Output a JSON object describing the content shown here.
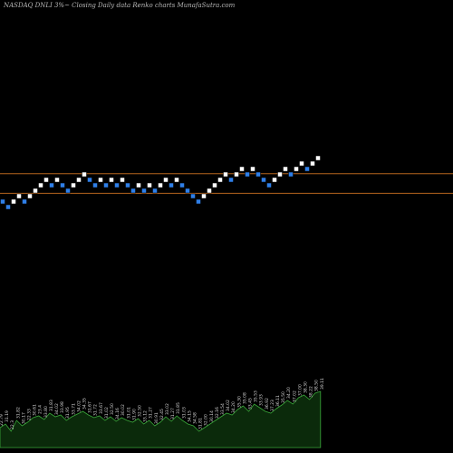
{
  "title": "NASDAQ DNLI 3%~  Closing Daily data  Renko  charts MunafaSutra.com",
  "colors": {
    "background": "#000000",
    "up_brick": "#ffffff",
    "down_brick": "#2f7fe8",
    "reference_line": "#b5651d",
    "volume_fill": "#0b2a0b",
    "volume_line": "#3aa83a",
    "label_text": "#d7d7d7"
  },
  "chart_data": {
    "type": "renko",
    "title": "NASDAQ DNLI 3%~  Closing Daily data  Renko  charts MunafaSutra.com",
    "brick_size_note": "3%",
    "bricks": [
      {
        "level": 1,
        "dir": "down"
      },
      {
        "level": 0,
        "dir": "down"
      },
      {
        "level": 1,
        "dir": "up"
      },
      {
        "level": 2,
        "dir": "up"
      },
      {
        "level": 1,
        "dir": "down"
      },
      {
        "level": 2,
        "dir": "up"
      },
      {
        "level": 3,
        "dir": "up"
      },
      {
        "level": 4,
        "dir": "up"
      },
      {
        "level": 5,
        "dir": "up"
      },
      {
        "level": 4,
        "dir": "down"
      },
      {
        "level": 5,
        "dir": "up"
      },
      {
        "level": 4,
        "dir": "down"
      },
      {
        "level": 3,
        "dir": "down"
      },
      {
        "level": 4,
        "dir": "up"
      },
      {
        "level": 5,
        "dir": "up"
      },
      {
        "level": 6,
        "dir": "up"
      },
      {
        "level": 5,
        "dir": "down"
      },
      {
        "level": 4,
        "dir": "down"
      },
      {
        "level": 5,
        "dir": "up"
      },
      {
        "level": 4,
        "dir": "down"
      },
      {
        "level": 5,
        "dir": "up"
      },
      {
        "level": 4,
        "dir": "down"
      },
      {
        "level": 5,
        "dir": "up"
      },
      {
        "level": 4,
        "dir": "down"
      },
      {
        "level": 3,
        "dir": "down"
      },
      {
        "level": 4,
        "dir": "up"
      },
      {
        "level": 3,
        "dir": "down"
      },
      {
        "level": 4,
        "dir": "up"
      },
      {
        "level": 3,
        "dir": "down"
      },
      {
        "level": 4,
        "dir": "up"
      },
      {
        "level": 5,
        "dir": "up"
      },
      {
        "level": 4,
        "dir": "down"
      },
      {
        "level": 5,
        "dir": "up"
      },
      {
        "level": 4,
        "dir": "down"
      },
      {
        "level": 3,
        "dir": "down"
      },
      {
        "level": 2,
        "dir": "down"
      },
      {
        "level": 1,
        "dir": "down"
      },
      {
        "level": 2,
        "dir": "up"
      },
      {
        "level": 3,
        "dir": "up"
      },
      {
        "level": 4,
        "dir": "up"
      },
      {
        "level": 5,
        "dir": "up"
      },
      {
        "level": 6,
        "dir": "up"
      },
      {
        "level": 5,
        "dir": "down"
      },
      {
        "level": 6,
        "dir": "up"
      },
      {
        "level": 7,
        "dir": "up"
      },
      {
        "level": 6,
        "dir": "down"
      },
      {
        "level": 7,
        "dir": "up"
      },
      {
        "level": 6,
        "dir": "down"
      },
      {
        "level": 5,
        "dir": "down"
      },
      {
        "level": 4,
        "dir": "down"
      },
      {
        "level": 5,
        "dir": "up"
      },
      {
        "level": 6,
        "dir": "up"
      },
      {
        "level": 7,
        "dir": "up"
      },
      {
        "level": 6,
        "dir": "down"
      },
      {
        "level": 7,
        "dir": "up"
      },
      {
        "level": 8,
        "dir": "up"
      },
      {
        "level": 7,
        "dir": "down"
      },
      {
        "level": 8,
        "dir": "up"
      },
      {
        "level": 9,
        "dir": "up"
      }
    ],
    "reference_lines": [
      {
        "level": 6.7
      },
      {
        "level": 3.1
      }
    ],
    "volume_area": [
      22,
      26,
      18,
      30,
      24,
      28,
      33,
      35,
      31,
      38,
      34,
      36,
      30,
      34,
      37,
      40,
      36,
      33,
      35,
      30,
      34,
      29,
      33,
      30,
      28,
      32,
      26,
      30,
      24,
      28,
      34,
      29,
      35,
      30,
      26,
      24,
      18,
      22,
      26,
      30,
      34,
      38,
      36,
      42,
      46,
      40,
      48,
      44,
      40,
      38,
      43,
      47,
      52,
      48,
      55,
      58,
      53,
      60,
      62
    ],
    "price_labels": [
      "22.79",
      "31.19",
      "22.3",
      "31.82",
      "30.17",
      "22.33",
      "30.61",
      "23.4",
      "33.80",
      "31.83",
      "34.02",
      "33.98",
      "31.95",
      "33.71",
      "34.02",
      "34.35",
      "31.67",
      "31.72",
      "33.67",
      "31.02",
      "32.50",
      "34.16",
      "30.02",
      "31.01",
      "31.90",
      "32.50",
      "33.12",
      "31.27",
      "30.91",
      "32.45",
      "33.02",
      "31.27",
      "31.85",
      "31.03",
      "34.15",
      "34.58",
      "31.81",
      "32.00",
      "30.14",
      "32.16",
      "33.54",
      "34.02",
      "34.20",
      "35.30",
      "35.08",
      "33.45",
      "35.53",
      "33.93",
      "36.92",
      "37.23",
      "36.11",
      "35.50",
      "34.20",
      "37.02",
      "37.00",
      "38.30",
      "38.22",
      "38.50",
      "39.11"
    ]
  }
}
